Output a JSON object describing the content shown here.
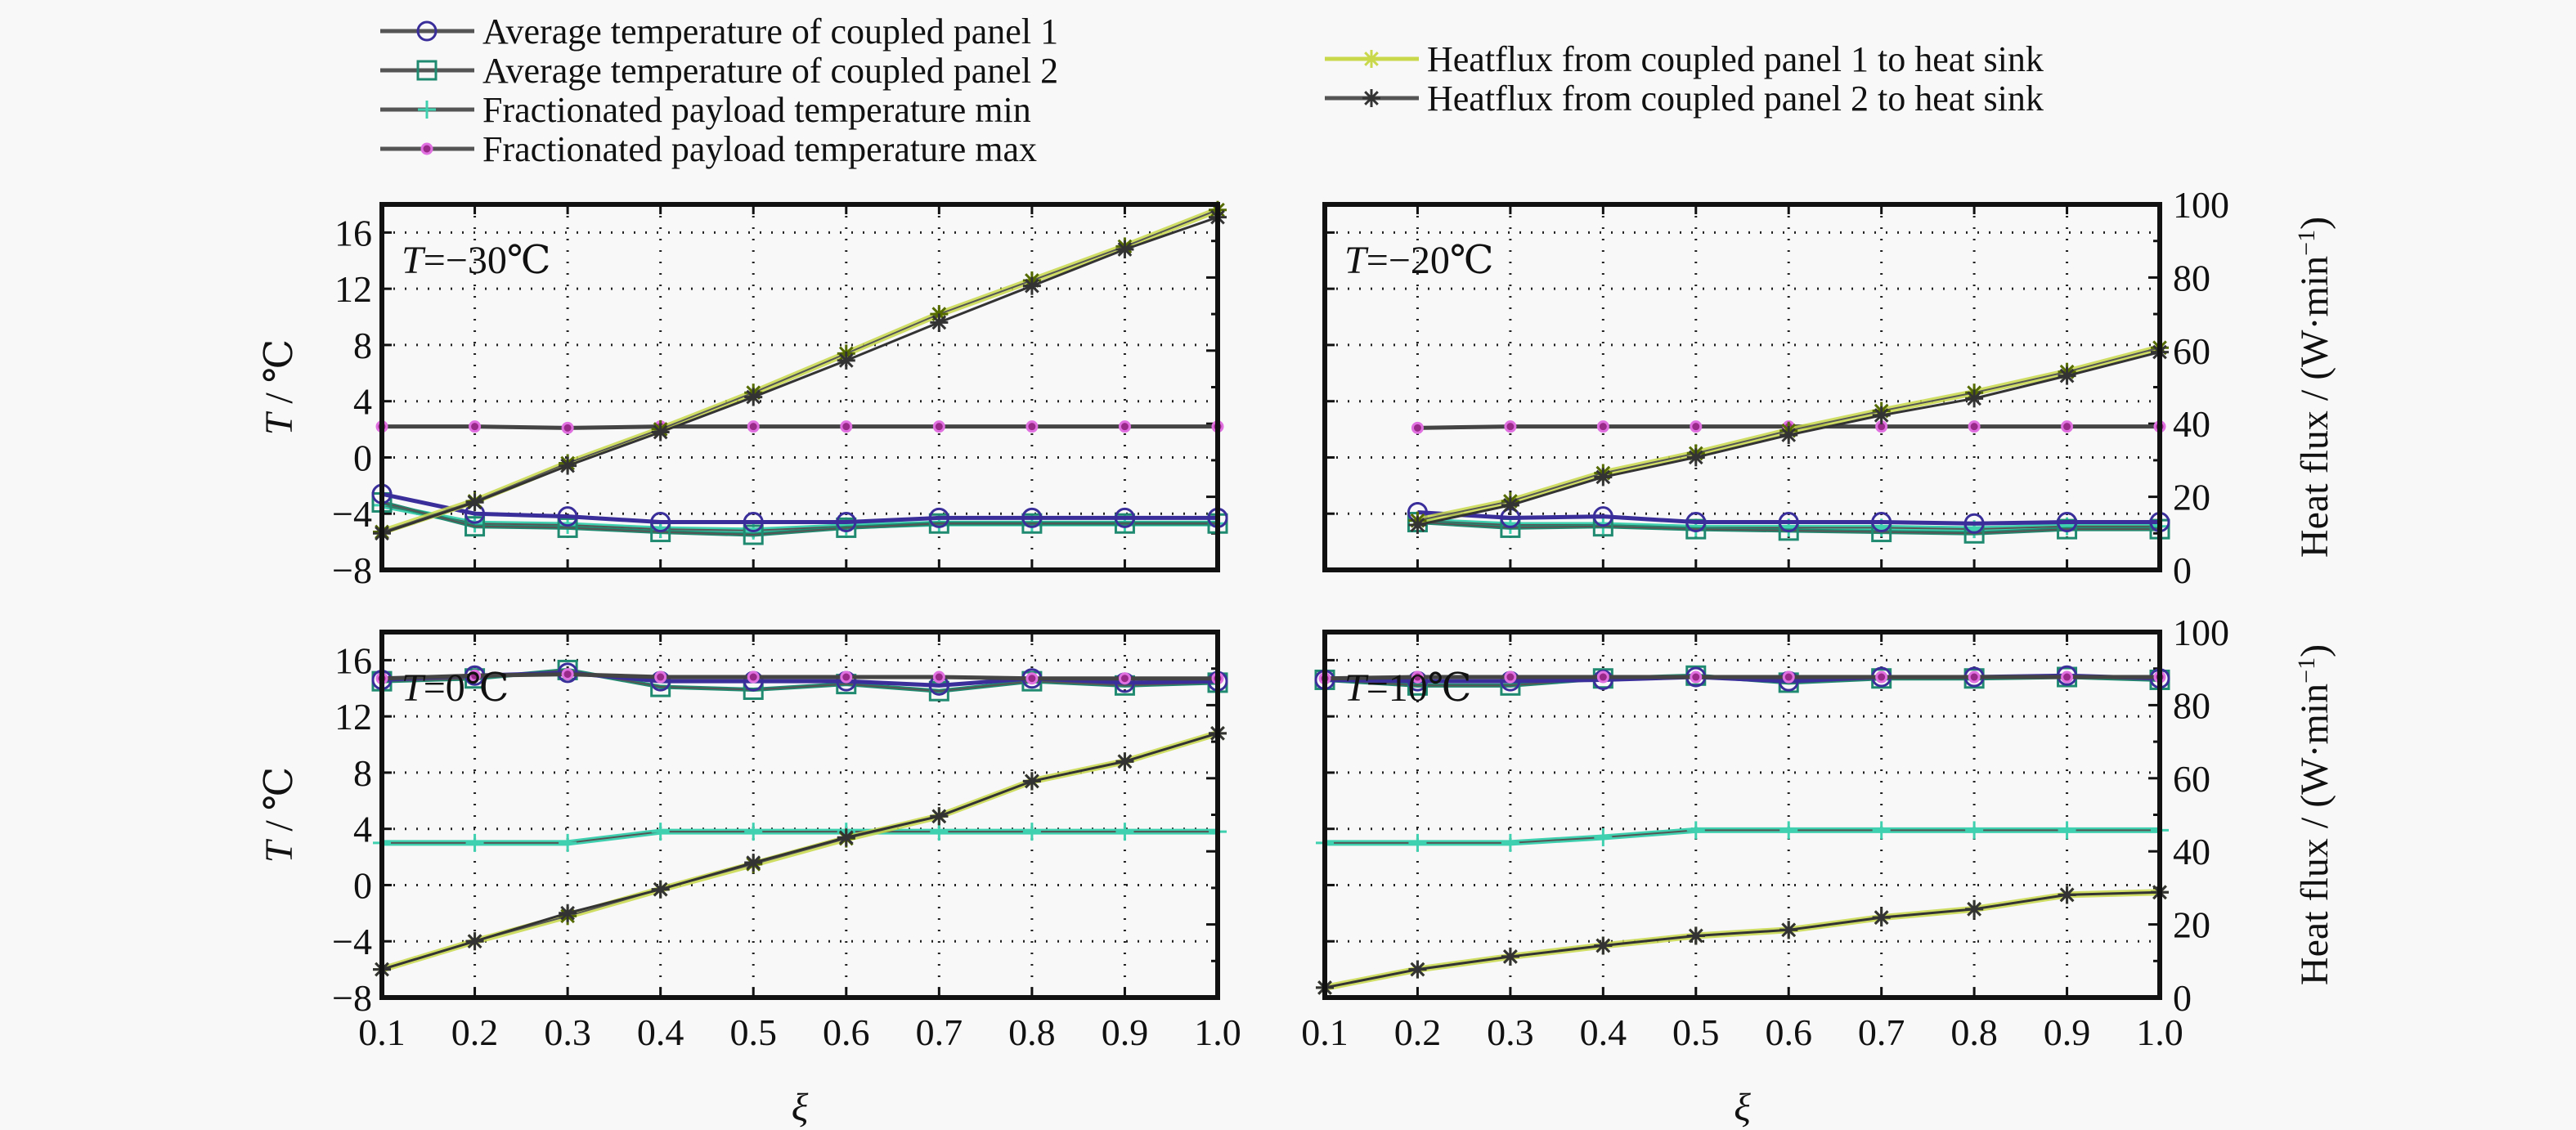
{
  "chart_data": {
    "type": "line",
    "legend": [
      {
        "name": "Average temperature of coupled panel 1",
        "color": "#3a2f9a",
        "marker": "circle",
        "axis": "left"
      },
      {
        "name": "Average temperature of coupled panel 2",
        "color": "#1f8a70",
        "marker": "square",
        "axis": "left"
      },
      {
        "name": "Fractionated payload temperature min",
        "color": "#3fd0b0",
        "marker": "plus",
        "axis": "left"
      },
      {
        "name": "Fractionated payload temperature max",
        "color": "#444444",
        "marker": "dot",
        "axis": "left"
      },
      {
        "name": "Heatflux from coupled panel 1 to heat sink",
        "color": "#c8d84a",
        "marker": "asterisk",
        "axis": "right"
      },
      {
        "name": "Heatflux from coupled panel 2 to heat sink",
        "color": "#333333",
        "marker": "star",
        "axis": "right"
      }
    ],
    "x": [
      0.1,
      0.2,
      0.3,
      0.4,
      0.5,
      0.6,
      0.7,
      0.8,
      0.9,
      1.0
    ],
    "x_tick_labels": [
      "0.1",
      "0.2",
      "0.3",
      "0.4",
      "0.5",
      "0.6",
      "0.7",
      "0.8",
      "0.9",
      "1.0"
    ],
    "xlabel": "ξ",
    "xlim": [
      0.1,
      1.0
    ],
    "ylabel_left": "T / ℃",
    "ylabel_left_italic": "T",
    "ylabel_left_unit": " / ℃",
    "ylim_left": [
      -8,
      18
    ],
    "y_ticks_left": [
      -8,
      -4,
      0,
      4,
      8,
      12,
      16
    ],
    "y_tick_labels_left": [
      "−8",
      "−4",
      "0",
      "4",
      "8",
      "12",
      "16"
    ],
    "ylabel_right": "Heat flux / (W·min⁻¹)",
    "ylabel_right_main": "Heat flux / (W·min",
    "ylabel_right_sup": "−1",
    "ylabel_right_close": ")",
    "ylim_right": [
      0,
      100
    ],
    "y_ticks_right": [
      0,
      20,
      40,
      60,
      80,
      100
    ],
    "y_tick_labels_right": [
      "0",
      "20",
      "40",
      "60",
      "80",
      "100"
    ],
    "grid": true,
    "panels": [
      {
        "annotation_italic": "T",
        "annotation_rest": "=−30℃",
        "series": {
          "panel1_avg": [
            -2.6,
            -4.0,
            -4.2,
            -4.6,
            -4.6,
            -4.6,
            -4.3,
            -4.3,
            -4.3,
            -4.3
          ],
          "panel2_avg": [
            -3.2,
            -4.9,
            -5.0,
            -5.3,
            -5.5,
            -5.0,
            -4.7,
            -4.7,
            -4.7,
            -4.7
          ],
          "payload_min": [
            -3.4,
            -4.7,
            -4.8,
            -5.1,
            -5.2,
            -4.9,
            -4.7,
            -4.7,
            -4.7,
            -4.7
          ],
          "payload_max": [
            2.2,
            2.2,
            2.1,
            2.2,
            2.2,
            2.2,
            2.2,
            2.2,
            2.2,
            2.2
          ],
          "heatflux1": [
            10.4,
            18.8,
            29.2,
            38.5,
            48.5,
            59.2,
            70.0,
            79.2,
            88.5,
            98.5
          ],
          "heatflux2": [
            10.0,
            18.5,
            28.5,
            37.7,
            47.3,
            57.3,
            67.7,
            77.7,
            87.7,
            96.5
          ]
        }
      },
      {
        "annotation_italic": "T",
        "annotation_rest": "=−20℃",
        "series": {
          "panel1_avg": [
            null,
            -3.9,
            -4.3,
            -4.2,
            -4.6,
            -4.6,
            -4.6,
            -4.7,
            -4.6,
            -4.6
          ],
          "panel2_avg": [
            null,
            -4.6,
            -5.0,
            -4.9,
            -5.1,
            -5.2,
            -5.3,
            -5.4,
            -5.1,
            -5.1
          ],
          "payload_min": [
            null,
            -4.5,
            -4.8,
            -4.8,
            -5.0,
            -5.0,
            -5.0,
            -5.1,
            -4.9,
            -4.9
          ],
          "payload_max": [
            null,
            2.1,
            2.2,
            2.2,
            2.2,
            2.2,
            2.2,
            2.2,
            2.2,
            2.2
          ],
          "heatflux1": [
            null,
            13.5,
            18.8,
            26.5,
            31.9,
            38.1,
            43.5,
            48.5,
            54.2,
            60.8
          ],
          "heatflux2": [
            null,
            12.3,
            17.7,
            25.4,
            30.8,
            36.9,
            42.3,
            46.9,
            53.1,
            59.6
          ]
        }
      },
      {
        "annotation_italic": "T",
        "annotation_rest": "=0℃",
        "series": {
          "panel1_avg": [
            14.6,
            14.9,
            15.1,
            14.5,
            14.5,
            14.5,
            14.2,
            14.7,
            14.4,
            14.5
          ],
          "panel2_avg": [
            14.5,
            14.7,
            15.3,
            14.1,
            13.9,
            14.3,
            13.8,
            14.5,
            14.2,
            14.4
          ],
          "payload_min": [
            3.0,
            3.0,
            3.0,
            3.8,
            3.8,
            3.8,
            3.8,
            3.8,
            3.8,
            3.8
          ],
          "payload_max": [
            14.7,
            14.9,
            15.0,
            14.8,
            14.8,
            14.8,
            14.8,
            14.7,
            14.7,
            14.7
          ],
          "heatflux1": [
            7.7,
            15.4,
            22.3,
            29.6,
            36.5,
            43.5,
            49.6,
            59.2,
            64.6,
            72.3
          ],
          "heatflux2": [
            7.7,
            15.4,
            23.1,
            29.6,
            36.9,
            43.8,
            49.6,
            59.2,
            64.6,
            72.3
          ]
        }
      },
      {
        "annotation_italic": "T",
        "annotation_rest": "=10℃",
        "series": {
          "panel1_avg": [
            14.6,
            14.5,
            14.5,
            14.6,
            14.8,
            14.5,
            14.8,
            14.8,
            14.9,
            14.7
          ],
          "panel2_avg": [
            14.6,
            14.2,
            14.2,
            14.7,
            14.9,
            14.4,
            14.7,
            14.7,
            14.8,
            14.6
          ],
          "payload_min": [
            3.0,
            3.0,
            3.0,
            3.4,
            3.9,
            3.9,
            3.9,
            3.9,
            3.9,
            3.9
          ],
          "payload_max": [
            14.7,
            14.8,
            14.8,
            14.8,
            14.8,
            14.8,
            14.8,
            14.8,
            14.8,
            14.8
          ],
          "heatflux1": [
            2.7,
            7.7,
            11.2,
            14.2,
            16.9,
            18.5,
            21.9,
            24.2,
            28.1,
            28.8
          ],
          "heatflux2": [
            2.7,
            7.7,
            11.2,
            14.2,
            16.9,
            18.5,
            21.9,
            24.2,
            28.1,
            28.8
          ]
        }
      }
    ]
  }
}
